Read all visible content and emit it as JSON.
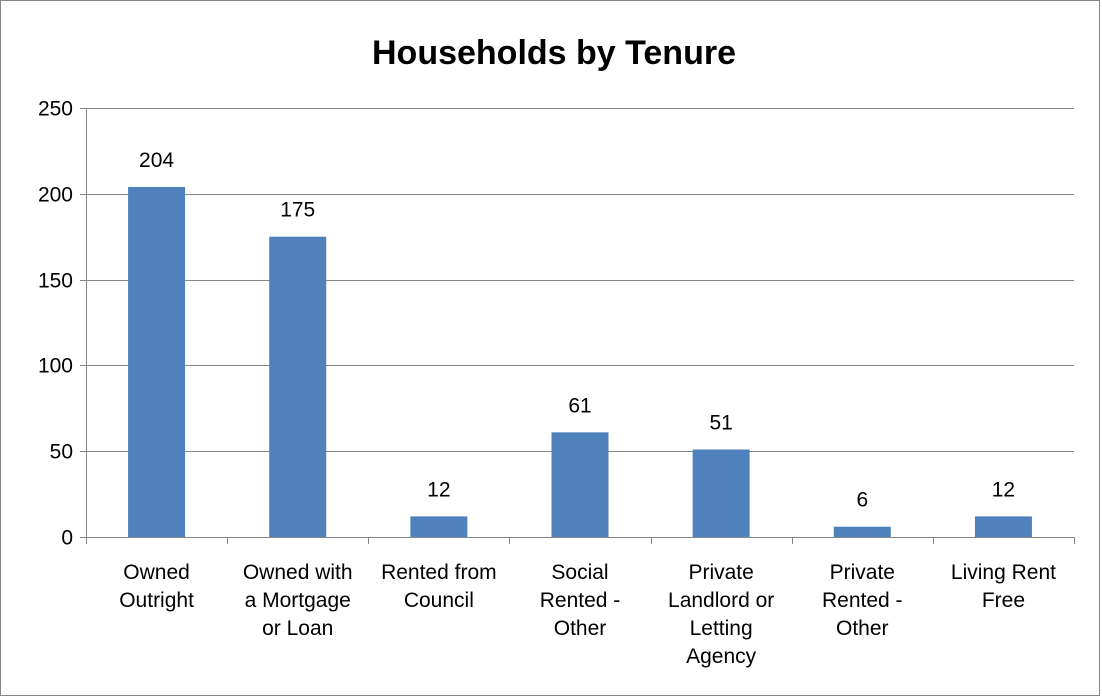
{
  "chart_data": {
    "type": "bar",
    "title": "Households by Tenure",
    "xlabel": "",
    "ylabel": "",
    "categories": [
      [
        "Owned",
        "Outright"
      ],
      [
        "Owned with",
        "a Mortgage",
        "or Loan"
      ],
      [
        "Rented from",
        "Council"
      ],
      [
        "Social",
        "Rented -",
        "Other"
      ],
      [
        "Private",
        "Landlord or",
        "Letting",
        "Agency"
      ],
      [
        "Private",
        "Rented -",
        "Other"
      ],
      [
        "Living Rent",
        "Free"
      ]
    ],
    "values": [
      204,
      175,
      12,
      61,
      51,
      6,
      12
    ],
    "ylim": [
      0,
      250
    ],
    "yticks": [
      0,
      50,
      100,
      150,
      200,
      250
    ],
    "grid": true,
    "bar_color": "#4f81bd",
    "grid_color": "#868686"
  }
}
